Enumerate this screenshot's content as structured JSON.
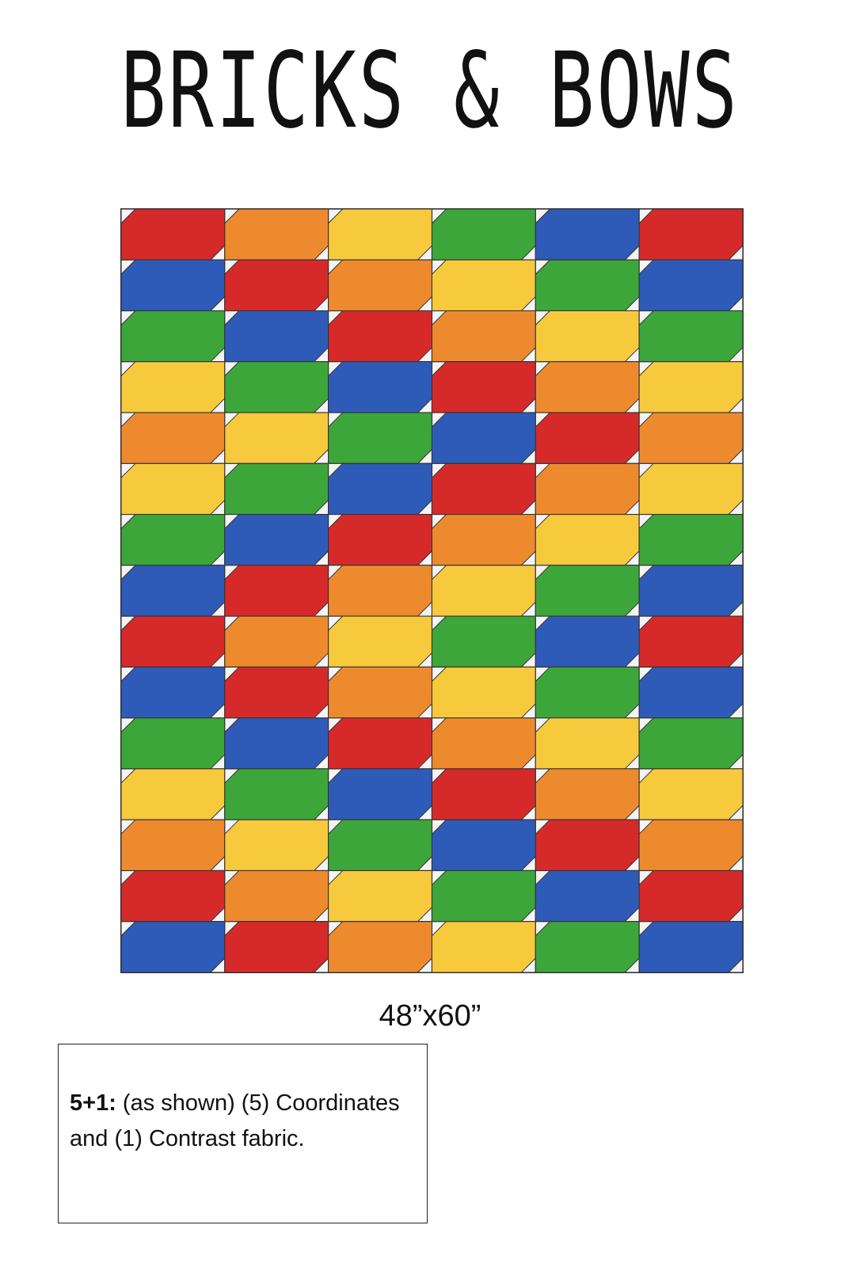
{
  "title": "BRICKS & BOWS",
  "size": "48”x60”",
  "note": {
    "label": "5+1:",
    "text": "(as shown) (5) Coordinates and (1) Contrast fabric."
  },
  "palette": {
    "R": "#d62a2a",
    "O": "#ee8a2e",
    "Y": "#f7c93c",
    "G": "#3da63a",
    "B": "#2f5bb8"
  },
  "quilt_rows": [
    "ROYGBR",
    "BROYGB",
    "GBROYG",
    "YGBROY",
    "OYGBRO",
    "YGBROY",
    "GBROYG",
    "BROYGB",
    "ROYGBR",
    "BROYGB",
    "GBROYG",
    "YGBROY",
    "OYGBRO",
    "ROYGBR",
    "BROYGB"
  ]
}
